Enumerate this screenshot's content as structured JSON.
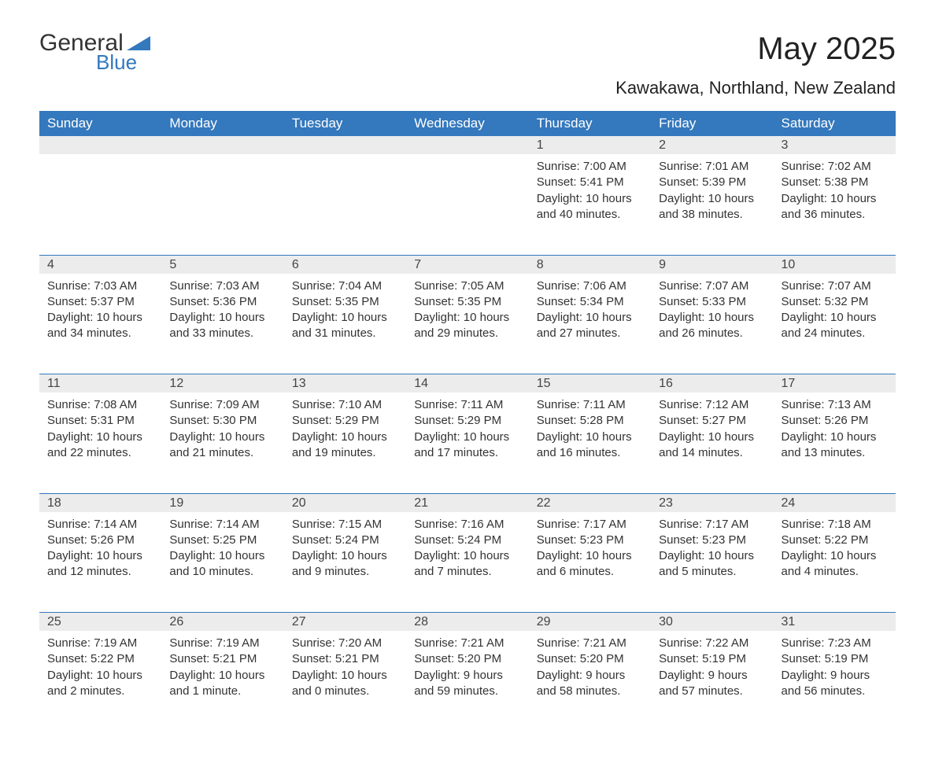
{
  "logo": {
    "general": "General",
    "blue": "Blue"
  },
  "title": "May 2025",
  "location": "Kawakawa, Northland, New Zealand",
  "colors": {
    "header_bg": "#3478bd",
    "header_text": "#ffffff",
    "daynum_bg": "#ececec",
    "border": "#3478bd",
    "page_bg": "#ffffff",
    "text": "#333333",
    "logo_blue": "#3478bd"
  },
  "typography": {
    "title_fontsize": 40,
    "location_fontsize": 22,
    "header_fontsize": 17,
    "cell_fontsize": 15,
    "daynum_fontsize": 16
  },
  "weekdays": [
    "Sunday",
    "Monday",
    "Tuesday",
    "Wednesday",
    "Thursday",
    "Friday",
    "Saturday"
  ],
  "weeks": [
    [
      null,
      null,
      null,
      null,
      {
        "n": "1",
        "sunrise": "7:00 AM",
        "sunset": "5:41 PM",
        "daylight": "10 hours and 40 minutes."
      },
      {
        "n": "2",
        "sunrise": "7:01 AM",
        "sunset": "5:39 PM",
        "daylight": "10 hours and 38 minutes."
      },
      {
        "n": "3",
        "sunrise": "7:02 AM",
        "sunset": "5:38 PM",
        "daylight": "10 hours and 36 minutes."
      }
    ],
    [
      {
        "n": "4",
        "sunrise": "7:03 AM",
        "sunset": "5:37 PM",
        "daylight": "10 hours and 34 minutes."
      },
      {
        "n": "5",
        "sunrise": "7:03 AM",
        "sunset": "5:36 PM",
        "daylight": "10 hours and 33 minutes."
      },
      {
        "n": "6",
        "sunrise": "7:04 AM",
        "sunset": "5:35 PM",
        "daylight": "10 hours and 31 minutes."
      },
      {
        "n": "7",
        "sunrise": "7:05 AM",
        "sunset": "5:35 PM",
        "daylight": "10 hours and 29 minutes."
      },
      {
        "n": "8",
        "sunrise": "7:06 AM",
        "sunset": "5:34 PM",
        "daylight": "10 hours and 27 minutes."
      },
      {
        "n": "9",
        "sunrise": "7:07 AM",
        "sunset": "5:33 PM",
        "daylight": "10 hours and 26 minutes."
      },
      {
        "n": "10",
        "sunrise": "7:07 AM",
        "sunset": "5:32 PM",
        "daylight": "10 hours and 24 minutes."
      }
    ],
    [
      {
        "n": "11",
        "sunrise": "7:08 AM",
        "sunset": "5:31 PM",
        "daylight": "10 hours and 22 minutes."
      },
      {
        "n": "12",
        "sunrise": "7:09 AM",
        "sunset": "5:30 PM",
        "daylight": "10 hours and 21 minutes."
      },
      {
        "n": "13",
        "sunrise": "7:10 AM",
        "sunset": "5:29 PM",
        "daylight": "10 hours and 19 minutes."
      },
      {
        "n": "14",
        "sunrise": "7:11 AM",
        "sunset": "5:29 PM",
        "daylight": "10 hours and 17 minutes."
      },
      {
        "n": "15",
        "sunrise": "7:11 AM",
        "sunset": "5:28 PM",
        "daylight": "10 hours and 16 minutes."
      },
      {
        "n": "16",
        "sunrise": "7:12 AM",
        "sunset": "5:27 PM",
        "daylight": "10 hours and 14 minutes."
      },
      {
        "n": "17",
        "sunrise": "7:13 AM",
        "sunset": "5:26 PM",
        "daylight": "10 hours and 13 minutes."
      }
    ],
    [
      {
        "n": "18",
        "sunrise": "7:14 AM",
        "sunset": "5:26 PM",
        "daylight": "10 hours and 12 minutes."
      },
      {
        "n": "19",
        "sunrise": "7:14 AM",
        "sunset": "5:25 PM",
        "daylight": "10 hours and 10 minutes."
      },
      {
        "n": "20",
        "sunrise": "7:15 AM",
        "sunset": "5:24 PM",
        "daylight": "10 hours and 9 minutes."
      },
      {
        "n": "21",
        "sunrise": "7:16 AM",
        "sunset": "5:24 PM",
        "daylight": "10 hours and 7 minutes."
      },
      {
        "n": "22",
        "sunrise": "7:17 AM",
        "sunset": "5:23 PM",
        "daylight": "10 hours and 6 minutes."
      },
      {
        "n": "23",
        "sunrise": "7:17 AM",
        "sunset": "5:23 PM",
        "daylight": "10 hours and 5 minutes."
      },
      {
        "n": "24",
        "sunrise": "7:18 AM",
        "sunset": "5:22 PM",
        "daylight": "10 hours and 4 minutes."
      }
    ],
    [
      {
        "n": "25",
        "sunrise": "7:19 AM",
        "sunset": "5:22 PM",
        "daylight": "10 hours and 2 minutes."
      },
      {
        "n": "26",
        "sunrise": "7:19 AM",
        "sunset": "5:21 PM",
        "daylight": "10 hours and 1 minute."
      },
      {
        "n": "27",
        "sunrise": "7:20 AM",
        "sunset": "5:21 PM",
        "daylight": "10 hours and 0 minutes."
      },
      {
        "n": "28",
        "sunrise": "7:21 AM",
        "sunset": "5:20 PM",
        "daylight": "9 hours and 59 minutes."
      },
      {
        "n": "29",
        "sunrise": "7:21 AM",
        "sunset": "5:20 PM",
        "daylight": "9 hours and 58 minutes."
      },
      {
        "n": "30",
        "sunrise": "7:22 AM",
        "sunset": "5:19 PM",
        "daylight": "9 hours and 57 minutes."
      },
      {
        "n": "31",
        "sunrise": "7:23 AM",
        "sunset": "5:19 PM",
        "daylight": "9 hours and 56 minutes."
      }
    ]
  ],
  "labels": {
    "sunrise": "Sunrise: ",
    "sunset": "Sunset: ",
    "daylight": "Daylight: "
  }
}
